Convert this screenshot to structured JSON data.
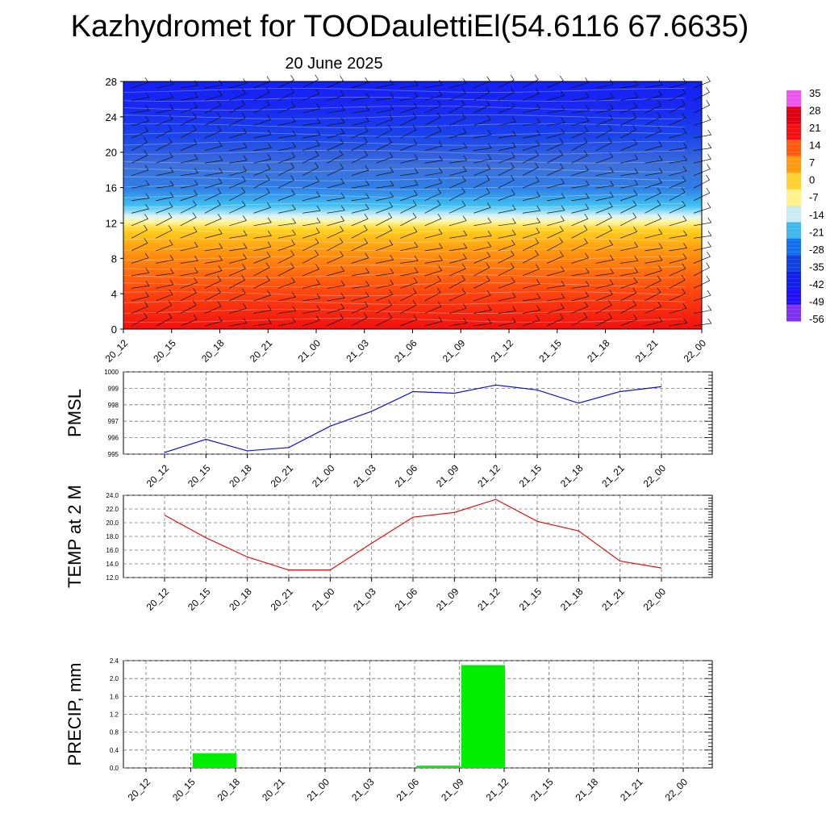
{
  "header": {
    "title": "Kazhydromet for TOODaulettiEl(54.6116 67.6635)",
    "subtitle": "20 June 2025"
  },
  "colors": {
    "pmsl_line": "#1010d0",
    "temp_line": "#e01010",
    "precip_bar": "#00ee00"
  },
  "chart_data": [
    {
      "type": "heatmap",
      "name": "temperature-wind-profile",
      "x_ticks": [
        "20_12",
        "20_15",
        "20_18",
        "20_21",
        "21_00",
        "21_03",
        "21_06",
        "21_09",
        "21_12",
        "21_15",
        "21_18",
        "21_21",
        "22_00"
      ],
      "y_ticks": [
        "0",
        "4",
        "8",
        "12",
        "16",
        "20",
        "24",
        "28"
      ],
      "ylim": [
        0,
        28
      ],
      "colorbar_labels": [
        "35",
        "28",
        "21",
        "14",
        "7",
        "0",
        "-7",
        "-14",
        "-21",
        "-28",
        "-35",
        "-42",
        "-49",
        "-56"
      ],
      "colorbar_stops": [
        "#ee55ee",
        "#e00010",
        "#f41010",
        "#ff5a10",
        "#ff9a10",
        "#ffd030",
        "#fff28a",
        "#c8ecf4",
        "#40b8ee",
        "#1070ee",
        "#1040e0",
        "#1020e8",
        "#2010f8",
        "#8030ee"
      ]
    },
    {
      "type": "line",
      "name": "pmsl",
      "ylabel": "PMSL",
      "categories": [
        "20_12",
        "20_15",
        "20_18",
        "20_21",
        "21_00",
        "21_03",
        "21_06",
        "21_09",
        "21_12",
        "21_15",
        "21_18",
        "21_21",
        "22_00"
      ],
      "values": [
        995.1,
        995.9,
        995.2,
        995.4,
        996.7,
        997.6,
        998.8,
        998.7,
        999.2,
        998.9,
        998.1,
        998.8,
        999.1
      ],
      "ylim": [
        995,
        1000
      ],
      "y_ticks": [
        "995",
        "996",
        "997",
        "998",
        "999",
        "1000"
      ],
      "grid": true
    },
    {
      "type": "line",
      "name": "temperature-2m",
      "ylabel": "TEMP at 2 M",
      "categories": [
        "20_12",
        "20_15",
        "20_18",
        "20_21",
        "21_00",
        "21_03",
        "21_06",
        "21_09",
        "21_12",
        "21_15",
        "21_18",
        "21_21",
        "22_00"
      ],
      "values": [
        21.1,
        17.8,
        15.0,
        13.1,
        13.1,
        17.0,
        20.8,
        21.5,
        23.4,
        20.2,
        18.8,
        14.4,
        13.4
      ],
      "ylim": [
        12,
        24
      ],
      "y_ticks": [
        "12.0",
        "14.0",
        "16.0",
        "18.0",
        "20.0",
        "22.0",
        "24.0"
      ],
      "grid": true
    },
    {
      "type": "bar",
      "name": "precipitation",
      "ylabel": "PRECIP, mm",
      "categories": [
        "20_12",
        "20_15",
        "20_18",
        "20_21",
        "21_00",
        "21_03",
        "21_06",
        "21_09",
        "21_12",
        "21_15",
        "21_18",
        "21_21",
        "22_00"
      ],
      "values": [
        0,
        0.33,
        0,
        0,
        0,
        0,
        0.05,
        2.3,
        0,
        0,
        0,
        0,
        0
      ],
      "ylim": [
        0,
        2.4
      ],
      "y_ticks": [
        "0.0",
        "0.4",
        "0.8",
        "1.2",
        "1.6",
        "2.0",
        "2.4"
      ],
      "grid": true
    }
  ]
}
